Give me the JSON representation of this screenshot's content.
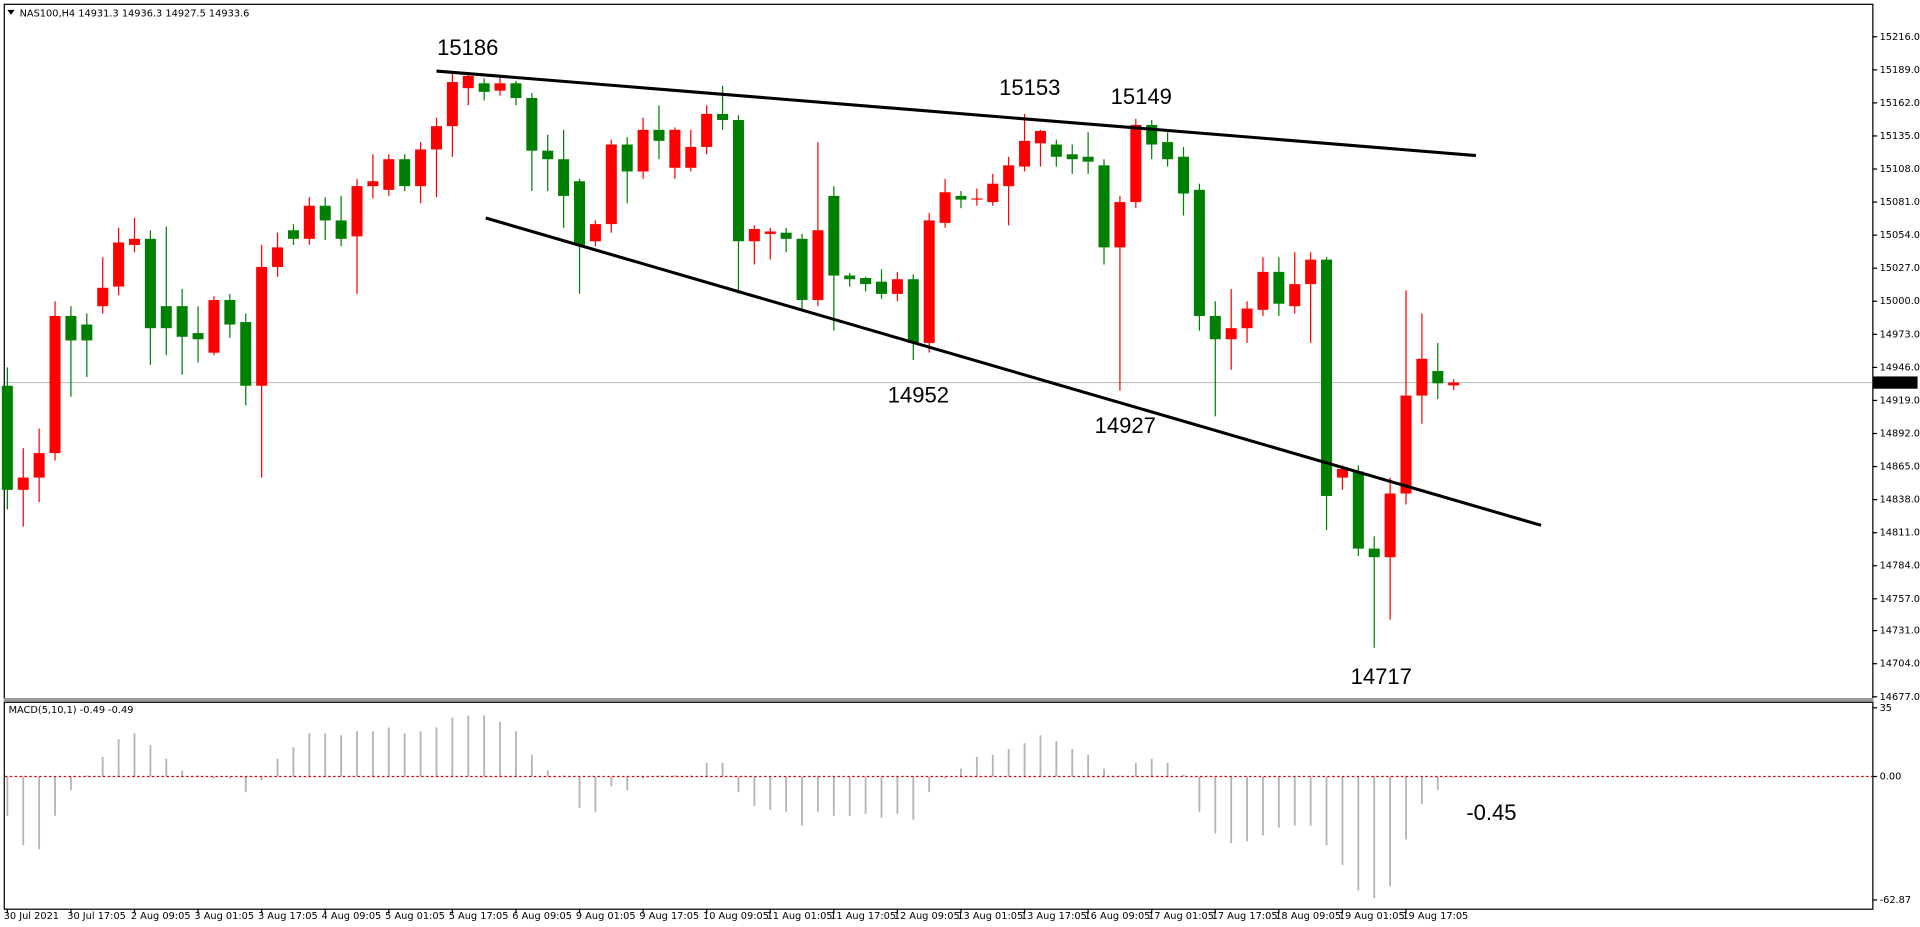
{
  "chart_data": [
    {
      "type": "candlestick",
      "title": "NAS100,H4  14931.3 14936.3 14927.5 14933.6",
      "up_color": "#ff0000",
      "down_color": "#008000",
      "categories": [
        "30 Jul 2021",
        null,
        null,
        null,
        "30 Jul 17:05",
        null,
        null,
        null,
        "2 Aug 09:05",
        null,
        null,
        null,
        "3 Aug 01:05",
        null,
        null,
        null,
        "3 Aug 17:05",
        null,
        null,
        null,
        "4 Aug 09:05",
        null,
        null,
        null,
        "5 Aug 01:05",
        null,
        null,
        null,
        "5 Aug 17:05",
        null,
        null,
        null,
        "6 Aug 09:05",
        null,
        null,
        null,
        "9 Aug 01:05",
        null,
        null,
        null,
        "9 Aug 17:05",
        null,
        null,
        null,
        "10 Aug 09:05",
        null,
        null,
        null,
        "11 Aug 01:05",
        null,
        null,
        null,
        "11 Aug 17:05",
        null,
        null,
        null,
        "12 Aug 09:05",
        null,
        null,
        null,
        "13 Aug 01:05",
        null,
        null,
        null,
        "13 Aug 17:05",
        null,
        null,
        null,
        "16 Aug 09:05",
        null,
        null,
        null,
        "17 Aug 01:05",
        null,
        null,
        null,
        "17 Aug 17:05",
        null,
        null,
        null,
        "18 Aug 09:05",
        null,
        null,
        null,
        "19 Aug 01:05",
        null,
        null,
        null,
        "19 Aug 17:05",
        null,
        null,
        null
      ],
      "open": [
        14931,
        14846,
        14856,
        14876,
        14988,
        14981,
        14996,
        15012,
        15046,
        15051,
        14996,
        14996,
        14974,
        14958,
        15001,
        14983,
        14931,
        15028,
        15058,
        15051,
        15078,
        15066,
        15053,
        15094,
        15091,
        15116,
        15094,
        15124,
        15143,
        15174,
        15178,
        15172,
        15178,
        15166,
        15123,
        15116,
        15098,
        15049,
        15063,
        15128,
        15106,
        15140,
        15109,
        15109,
        15126,
        15153,
        15148,
        15049,
        15055,
        15056,
        15051,
        15001,
        15086,
        15021,
        15019,
        15016,
        15006,
        15018,
        14966,
        15064,
        15086,
        15083,
        15081,
        15094,
        15110,
        15129,
        15128,
        15120,
        15118,
        15111,
        15044,
        15081,
        15144,
        15130,
        15118,
        15091,
        14988,
        14969,
        14978,
        14993,
        15024,
        14996,
        15014,
        15034,
        14856,
        14861,
        14798,
        14791,
        14843,
        14923,
        14943,
        14931.3
      ],
      "high": [
        14946,
        14880,
        14896,
        15000,
        14996,
        14990,
        15036,
        15060,
        15068,
        15058,
        15061,
        15010,
        14996,
        15004,
        15006,
        14990,
        15046,
        15056,
        15063,
        15085,
        15085,
        15086,
        15100,
        15120,
        15120,
        15120,
        15130,
        15150,
        15186,
        15186,
        15182,
        15184,
        15180,
        15170,
        15136,
        15140,
        15100,
        15066,
        15132,
        15134,
        15150,
        15160,
        15142,
        15140,
        15160,
        15176,
        15152,
        15062,
        15060,
        15060,
        15055,
        15130,
        15094,
        15023,
        15020,
        15026,
        15024,
        15022,
        15072,
        15100,
        15090,
        15092,
        15104,
        15118,
        15153,
        15140,
        15132,
        15128,
        15138,
        15116,
        15086,
        15149,
        15148,
        15138,
        15126,
        15096,
        15000,
        15010,
        15000,
        15036,
        15036,
        15040,
        15040,
        15036,
        14866,
        14866,
        14808,
        14856,
        15009,
        14990,
        14966,
        14936.3
      ],
      "low": [
        14830,
        14816,
        14836,
        14870,
        14922,
        14938,
        14990,
        15005,
        15040,
        14948,
        14956,
        14940,
        14950,
        14956,
        14970,
        14915,
        14856,
        15020,
        15046,
        15046,
        15050,
        15045,
        15006,
        15084,
        15086,
        15090,
        15080,
        15085,
        15118,
        15160,
        15164,
        15168,
        15160,
        15090,
        15090,
        15060,
        15006,
        15045,
        15056,
        15080,
        15100,
        15116,
        15100,
        15106,
        15120,
        15140,
        15006,
        15030,
        15034,
        15040,
        14994,
        14996,
        14976,
        15012,
        15008,
        15002,
        15000,
        14952,
        14958,
        15060,
        15076,
        15078,
        15078,
        15062,
        15106,
        15110,
        15110,
        15104,
        15104,
        15030,
        14927,
        15076,
        15116,
        15110,
        15070,
        14976,
        14906,
        14944,
        14966,
        14988,
        14988,
        14990,
        14966,
        14813,
        14846,
        14792,
        14717,
        14740,
        14834,
        14900,
        14920,
        14927.5
      ],
      "close": [
        14846,
        14856,
        14876,
        14988,
        14968,
        14968,
        15011,
        15048,
        15051,
        14978,
        14978,
        14971,
        14969,
        15001,
        14981,
        14931,
        15028,
        15044,
        15051,
        15078,
        15066,
        15051,
        15094,
        15098,
        15116,
        15094,
        15124,
        15143,
        15179,
        15184,
        15171,
        15178,
        15166,
        15123,
        15116,
        15086,
        15046,
        15063,
        15128,
        15106,
        15140,
        15131,
        15140,
        15126,
        15153,
        15148,
        15049,
        15059,
        15057,
        15051,
        15001,
        15058,
        15021,
        15018,
        15014,
        15006,
        15018,
        14966,
        15066,
        15089,
        15083,
        15084,
        15096,
        15111,
        15131,
        15139,
        15118,
        15116,
        15114,
        15044,
        15081,
        15144,
        15128,
        15116,
        15088,
        14988,
        14969,
        14978,
        14994,
        15024,
        14998,
        15014,
        15034,
        14841,
        14863,
        14798,
        14791,
        14843,
        14923,
        14953,
        14933,
        14933.6
      ],
      "ylim": [
        14676,
        15242
      ],
      "yticks": [
        {
          "value": 15216,
          "label": "15216.0"
        },
        {
          "value": 15189,
          "label": "15189.0"
        },
        {
          "value": 15162,
          "label": "15162.0"
        },
        {
          "value": 15135,
          "label": "15135.0"
        },
        {
          "value": 15108,
          "label": "15108.0"
        },
        {
          "value": 15081,
          "label": "15081.0"
        },
        {
          "value": 15054,
          "label": "15054.0"
        },
        {
          "value": 15027,
          "label": "15027.0"
        },
        {
          "value": 15000,
          "label": "15000.0"
        },
        {
          "value": 14973,
          "label": "14973.0"
        },
        {
          "value": 14946,
          "label": "14946.0"
        },
        {
          "value": 14919,
          "label": "14919.0"
        },
        {
          "value": 14892,
          "label": "14892.0"
        },
        {
          "value": 14865,
          "label": "14865.0"
        },
        {
          "value": 14838,
          "label": "14838.0"
        },
        {
          "value": 14811,
          "label": "14811.0"
        },
        {
          "value": 14784,
          "label": "14784.0"
        },
        {
          "value": 14757,
          "label": "14757.0"
        },
        {
          "value": 14731,
          "label": "14731.0"
        },
        {
          "value": 14704,
          "label": "14704.0"
        },
        {
          "value": 14677,
          "label": "14677.0"
        }
      ],
      "annotations": [
        15186,
        15153,
        15149,
        14952,
        14927,
        14717
      ],
      "annotation_color": "#ff0000",
      "trendlines": [
        {
          "x": [
            27,
            92.4
          ],
          "y": [
            15188,
            15119
          ]
        },
        {
          "x": [
            30.1,
            96.5
          ],
          "y": [
            15068,
            14817
          ]
        }
      ],
      "trendline_color": "#000000"
    },
    {
      "type": "bar",
      "title": "MACD(5,10,1) -0.49 -0.49",
      "color": "#b4b4b4",
      "values": [
        -20,
        -35,
        -37,
        -20,
        -7,
        0.5,
        10,
        19,
        22,
        16,
        9,
        3,
        0.5,
        -1,
        -1,
        -8,
        -2,
        9,
        15,
        22,
        22,
        21,
        23,
        23,
        25,
        22,
        23,
        25,
        30,
        31,
        31,
        28,
        23,
        11,
        3,
        0.5,
        -16,
        -18,
        -5,
        -7,
        -1,
        0.5,
        0.5,
        0.5,
        7,
        7,
        -8,
        -15,
        -17,
        -18,
        -25,
        -18,
        -20,
        -20,
        -19,
        -21,
        -19,
        -22,
        -8,
        -1,
        4,
        10,
        11,
        14,
        17,
        21,
        18,
        14,
        11,
        4,
        0.5,
        7,
        9,
        7,
        1,
        -18,
        -29,
        -34,
        -33,
        -30,
        -26,
        -25,
        -25,
        -35,
        -45,
        -58,
        -62,
        -56,
        -32,
        -14,
        -7,
        -0.49
      ],
      "ylim": [
        -67.3,
        37.5
      ],
      "yticks": [
        35,
        {
          "value": 0,
          "label": "0.00"
        },
        -62.87
      ],
      "zero_line_color": "#e00000",
      "annotations": [
        -0.45
      ],
      "annotation_color": "#ff0000"
    }
  ]
}
